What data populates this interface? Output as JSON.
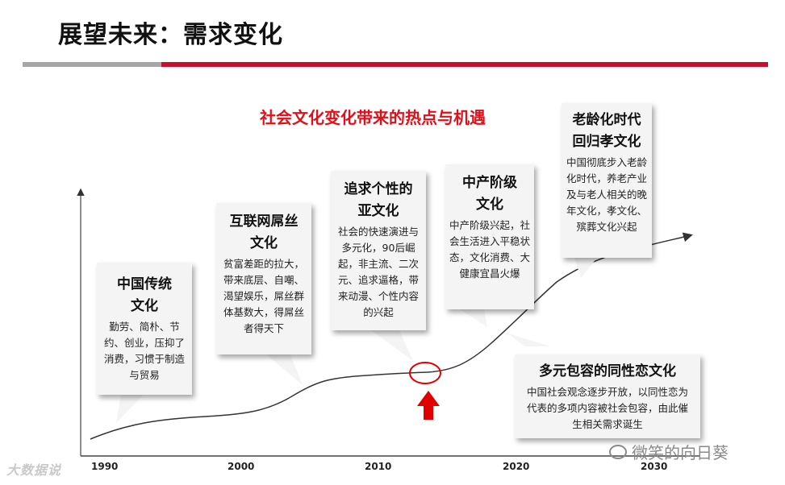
{
  "page": {
    "title": "展望未来：需求变化",
    "subtitle": "社会文化变化带来的热点与机遇"
  },
  "colors": {
    "accent_red": "#c8102e",
    "subtitle_red": "#e0101a",
    "arrow_red": "#e00000",
    "bar_gray": "#a6a6a6"
  },
  "axis": {
    "years": [
      "1990",
      "2000",
      "2010",
      "2020",
      "2030"
    ]
  },
  "callouts": [
    {
      "id": "traditional",
      "heading": "中国传统文化",
      "body": "勤劳、简朴、节约、创业，压抑了消费，习惯于制造与贸易"
    },
    {
      "id": "internet",
      "heading": "互联网屌丝文化",
      "body": "贫富差距的拉大，带来底层、自嘲、渴望娱乐，屌丝群体基数大，得屌丝者得天下"
    },
    {
      "id": "subculture",
      "heading": "追求个性的亚文化",
      "body": "社会的快速演进与多元化，90后崛起，非主流、二次元、追求逼格，带来动漫、个性内容的兴起"
    },
    {
      "id": "middle-class",
      "heading": "中产阶级文化",
      "body": "中产阶级兴起，社会生活进入平稳状态，文化消费、大健康宜昌火爆"
    },
    {
      "id": "aging",
      "heading": "老龄化时代回归孝文化",
      "body": "中国彻底步入老龄化时代，养老产业及与老人相关的晚年文化，孝文化、殡葬文化兴起"
    },
    {
      "id": "diversity",
      "heading": "多元包容的同性恋文化",
      "body": "中国社会观念逐步开放，以同性恋为代表的多项内容被社会包容，由此催生相关需求诞生"
    }
  ],
  "watermarks": {
    "left": "大数据说",
    "right": "微笑的向日葵"
  }
}
